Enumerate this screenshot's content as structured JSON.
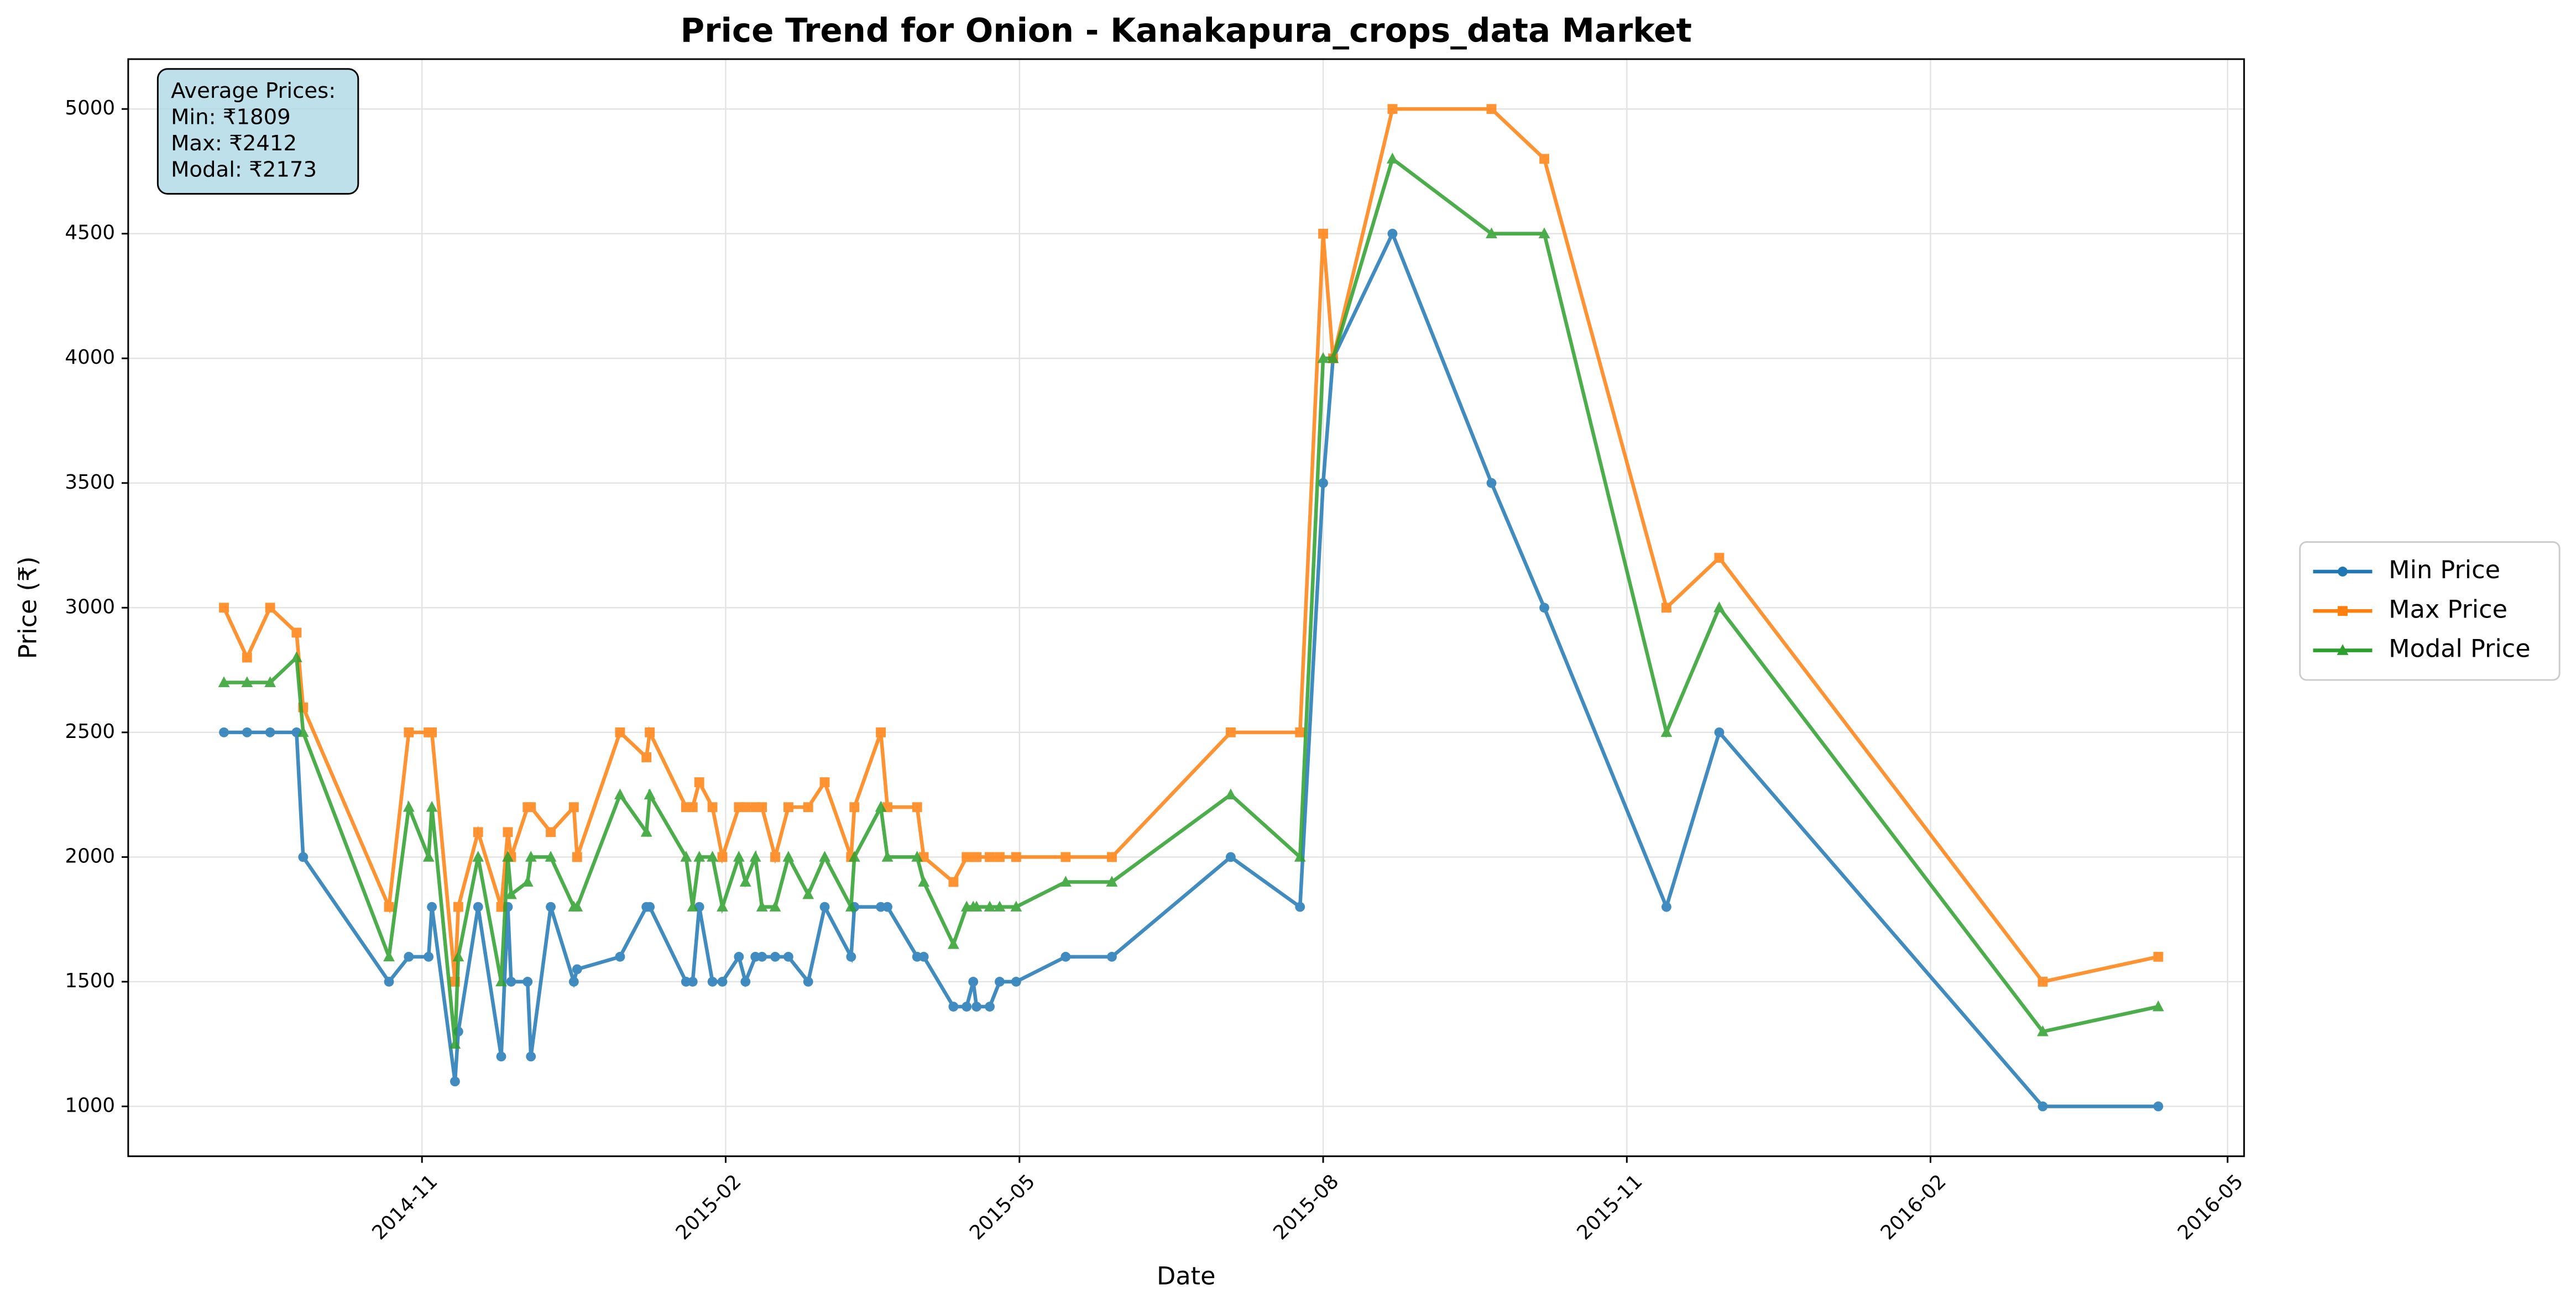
{
  "chart_data": {
    "type": "line",
    "title": "Price Trend for Onion - Kanakapura_crops_data Market",
    "xlabel": "Date",
    "ylabel": "Price (₹)",
    "annotation": [
      "Average Prices:",
      "Min: ₹1809",
      "Max: ₹2412",
      "Modal: ₹2173"
    ],
    "x": [
      "2014-09-02",
      "2014-09-09",
      "2014-09-16",
      "2014-09-24",
      "2014-09-26",
      "2014-10-22",
      "2014-10-28",
      "2014-11-03",
      "2014-11-04",
      "2014-11-11",
      "2014-11-12",
      "2014-11-18",
      "2014-11-25",
      "2014-11-27",
      "2014-11-28",
      "2014-12-03",
      "2014-12-04",
      "2014-12-10",
      "2014-12-17",
      "2014-12-18",
      "2014-12-31",
      "2015-01-08",
      "2015-01-09",
      "2015-01-20",
      "2015-01-22",
      "2015-01-24",
      "2015-01-28",
      "2015-01-31",
      "2015-02-05",
      "2015-02-07",
      "2015-02-10",
      "2015-02-12",
      "2015-02-16",
      "2015-02-20",
      "2015-02-26",
      "2015-03-03",
      "2015-03-11",
      "2015-03-12",
      "2015-03-20",
      "2015-03-22",
      "2015-03-31",
      "2015-04-02",
      "2015-04-11",
      "2015-04-15",
      "2015-04-17",
      "2015-04-18",
      "2015-04-22",
      "2015-04-25",
      "2015-04-30",
      "2015-05-15",
      "2015-05-29",
      "2015-07-04",
      "2015-07-25",
      "2015-08-01",
      "2015-08-04",
      "2015-08-22",
      "2015-09-21",
      "2015-10-07",
      "2015-11-13",
      "2015-11-29",
      "2016-03-06",
      "2016-04-10"
    ],
    "series": [
      {
        "name": "Min Price",
        "color": "#1f77b4",
        "marker": "circle",
        "values": [
          2500,
          2500,
          2500,
          2500,
          2000,
          1500,
          1600,
          1600,
          1800,
          1100,
          1300,
          1800,
          1200,
          1800,
          1500,
          1500,
          1200,
          1800,
          1500,
          1550,
          1600,
          1800,
          1800,
          1500,
          1500,
          1800,
          1500,
          1500,
          1600,
          1500,
          1600,
          1600,
          1600,
          1600,
          1500,
          1800,
          1600,
          1800,
          1800,
          1800,
          1600,
          1600,
          1400,
          1400,
          1500,
          1400,
          1400,
          1500,
          1500,
          1600,
          1600,
          2000,
          1800,
          3500,
          4000,
          4500,
          3500,
          3000,
          1800,
          2500,
          1000,
          1000
        ]
      },
      {
        "name": "Max Price",
        "color": "#ff7f0e",
        "marker": "square",
        "values": [
          3000,
          2800,
          3000,
          2900,
          2600,
          1800,
          2500,
          2500,
          2500,
          1500,
          1800,
          2100,
          1800,
          2100,
          2000,
          2200,
          2200,
          2100,
          2200,
          2000,
          2500,
          2400,
          2500,
          2200,
          2200,
          2300,
          2200,
          2000,
          2200,
          2200,
          2200,
          2200,
          2000,
          2200,
          2200,
          2300,
          2000,
          2200,
          2500,
          2200,
          2200,
          2000,
          1900,
          2000,
          2000,
          2000,
          2000,
          2000,
          2000,
          2000,
          2000,
          2500,
          2500,
          4500,
          4000,
          5000,
          5000,
          4800,
          3000,
          3200,
          1500,
          1600
        ]
      },
      {
        "name": "Modal Price",
        "color": "#2ca02c",
        "marker": "triangle",
        "values": [
          2700,
          2700,
          2700,
          2800,
          2500,
          1600,
          2200,
          2000,
          2200,
          1250,
          1600,
          2000,
          1500,
          2000,
          1850,
          1900,
          2000,
          2000,
          1800,
          1800,
          2250,
          2100,
          2250,
          2000,
          1800,
          2000,
          2000,
          1800,
          2000,
          1900,
          2000,
          1800,
          1800,
          2000,
          1850,
          2000,
          1800,
          2000,
          2200,
          2000,
          2000,
          1900,
          1650,
          1800,
          1800,
          1800,
          1800,
          1800,
          1800,
          1900,
          1900,
          2250,
          2000,
          4000,
          4000,
          4800,
          4500,
          4500,
          2500,
          3000,
          1300,
          1400
        ]
      }
    ],
    "xlim": [
      "2014-08-04",
      "2016-05-06"
    ],
    "xticks": [
      "2014-11",
      "2015-02",
      "2015-05",
      "2015-08",
      "2015-11",
      "2016-02",
      "2016-05"
    ],
    "ylim": [
      800,
      5200
    ],
    "yticks": [
      1000,
      1500,
      2000,
      2500,
      3000,
      3500,
      4000,
      4500,
      5000
    ],
    "grid": true,
    "legend": "center right"
  }
}
